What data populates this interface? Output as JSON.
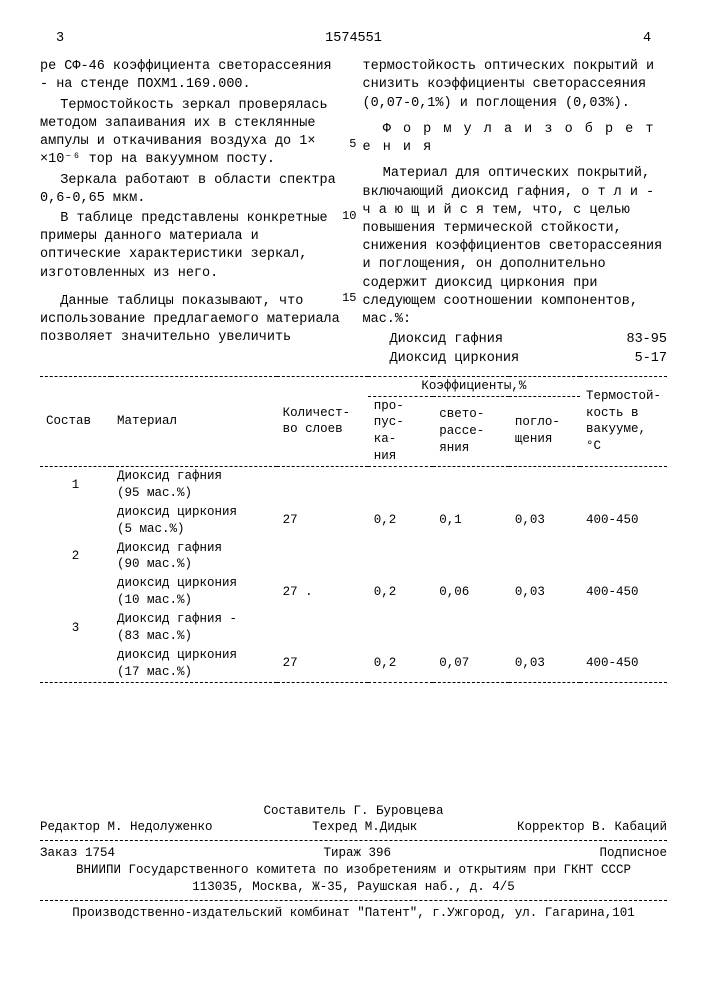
{
  "header": {
    "col_a": "3",
    "doc_num": "1574551",
    "col_b": "4"
  },
  "left": {
    "p1": "ре СФ-46 коэффициента светорассеяния - на стенде ПОХМ1.169.000.",
    "p2": "Термостойкость зеркал проверялась методом запаивания их в стеклянные ампулы и откачивания воздуха до 1× ×10⁻⁶ тор на вакуумном посту.",
    "p3": "Зеркала работают в области спектра 0,6-0,65 мкм.",
    "p4": "В таблице представлены конкретные примеры данного материала и оптические характеристики зеркал, изготовленных из него.",
    "p5": "Данные таблицы показывают, что использование предлагаемого материала позволяет значительно увеличить"
  },
  "line_nums": {
    "a": "5",
    "b": "10",
    "c": "15"
  },
  "right": {
    "p1": "термостойкость оптических покрытий и снизить коэффициенты светорассеяния (0,07-0,1%) и поглощения (0,03%).",
    "formula_heading": "Ф о р м у л а   и з о б р е т е н и я",
    "p2": "Материал для оптических покрытий, включающий диоксид гафния, о т л и - ч а ю щ и й с я  тем, что, с целью повышения термической стойкости, снижения коэффициентов светорассеяния и поглощения, он дополнительно содержит диоксид циркония при следующем соотношении компонентов, мас.%:",
    "l1a": "Диоксид гафния",
    "l1b": "83-95",
    "l2a": "Диоксид циркония",
    "l2b": "5-17"
  },
  "table": {
    "headers": {
      "c1": "Состав",
      "c2": "Материал",
      "c3": "Количест-\nво слоев",
      "c4": "Коэффициенты,%",
      "c5": "Термостой-\nкость в\nвакууме,\n°С",
      "c4a": "про-\nпус-\nка-\nния",
      "c4b": "свето-\nрассе-\nяния",
      "c4c": "погло-\nщения"
    },
    "rows": [
      {
        "n": "1",
        "mat1": "Диоксид гафния\n(95 мас.%)",
        "mat2": "диоксид циркония\n(5 мас.%)",
        "layers": "27",
        "t": "0,2",
        "s": "0,1",
        "a": "0,03",
        "temp": "400-450"
      },
      {
        "n": "2",
        "mat1": "Диоксид гафния\n(90 мас.%)",
        "mat2": "диоксид циркония\n(10 мас.%)",
        "layers": "27 .",
        "t": "0,2",
        "s": "0,06",
        "a": "0,03",
        "temp": "400-450"
      },
      {
        "n": "3",
        "mat1": "Диоксид гафния -\n(83 мас.%)",
        "mat2": "диоксид циркония\n(17 мас.%)",
        "layers": "27",
        "t": "0,2",
        "s": "0,07",
        "a": "0,03",
        "temp": "400-450"
      }
    ]
  },
  "footer": {
    "compiler": "Составитель Г. Буровцева",
    "editor": "Редактор М. Недолуженко",
    "techred": "Техред М.Дидык",
    "corrector": "Корректор В. Кабаций",
    "order": "Заказ 1754",
    "tirazh": "Тираж 396",
    "sub": "Подписное",
    "org1": "ВНИИПИ Государственного комитета по изобретениям и открытиям при ГКНТ СССР",
    "org2": "113035, Москва, Ж-35, Раушская наб., д. 4/5",
    "pub": "Производственно-издательский комбинат \"Патент\", г.Ужгород, ул. Гагарина,101"
  }
}
